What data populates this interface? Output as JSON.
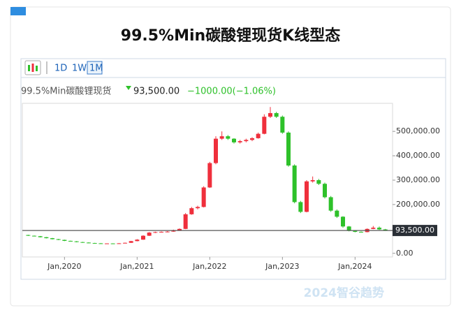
{
  "chart_data": {
    "type": "candlestick",
    "title": "99.5%Min碳酸锂现货K线型态",
    "toolbar": [
      "1D",
      "1W",
      "1M"
    ],
    "active": "1M",
    "series_name": "99.5%Min碳酸锂现货",
    "price_line": {
      "value": 93500,
      "label": "93,500.00"
    },
    "change_text": "−1000.00(−1.06%)",
    "watermark": "2024智谷趋势",
    "up_color": "#ef2f3c",
    "down_color": "#2ec12a",
    "grid": false,
    "x": [
      "2019-07",
      "2019-08",
      "2019-09",
      "2019-10",
      "2019-11",
      "2019-12",
      "2020-01",
      "2020-02",
      "2020-03",
      "2020-04",
      "2020-05",
      "2020-06",
      "2020-07",
      "2020-08",
      "2020-09",
      "2020-10",
      "2020-11",
      "2020-12",
      "2021-01",
      "2021-02",
      "2021-03",
      "2021-04",
      "2021-05",
      "2021-06",
      "2021-07",
      "2021-08",
      "2021-09",
      "2021-10",
      "2021-11",
      "2021-12",
      "2022-01",
      "2022-02",
      "2022-03",
      "2022-04",
      "2022-05",
      "2022-06",
      "2022-07",
      "2022-08",
      "2022-09",
      "2022-10",
      "2022-11",
      "2022-12",
      "2023-01",
      "2023-02",
      "2023-03",
      "2023-04",
      "2023-05",
      "2023-06",
      "2023-07",
      "2023-08",
      "2023-09",
      "2023-10",
      "2023-11",
      "2023-12",
      "2024-01",
      "2024-02",
      "2024-03",
      "2024-04",
      "2024-05",
      "2024-06"
    ],
    "open": [
      75000,
      72000,
      70000,
      66000,
      62000,
      58000,
      55000,
      51000,
      49000,
      46000,
      44000,
      42000,
      41000,
      40000,
      40500,
      40000,
      41000,
      43000,
      50000,
      56000,
      72000,
      85000,
      87000,
      88000,
      89000,
      95000,
      100000,
      160000,
      185000,
      190000,
      270000,
      370000,
      470000,
      480000,
      470000,
      455000,
      460000,
      465000,
      472000,
      490000,
      560000,
      575000,
      560000,
      495000,
      360000,
      210000,
      170000,
      295000,
      300000,
      285000,
      230000,
      175000,
      150000,
      110000,
      92000,
      88000,
      87000,
      100000,
      105000,
      98000
    ],
    "high": [
      76000,
      73000,
      71000,
      67000,
      63000,
      59000,
      56000,
      52000,
      50000,
      47000,
      45000,
      43000,
      42000,
      41000,
      41000,
      42000,
      44000,
      51000,
      58000,
      74000,
      87000,
      89000,
      90000,
      91000,
      97000,
      102000,
      165000,
      190000,
      195000,
      275000,
      375000,
      480000,
      500000,
      485000,
      472000,
      465000,
      470000,
      476000,
      495000,
      570000,
      600000,
      580000,
      565000,
      500000,
      365000,
      215000,
      300000,
      315000,
      305000,
      290000,
      235000,
      180000,
      152000,
      112000,
      93000,
      90000,
      102000,
      112000,
      110000,
      100000
    ],
    "low": [
      71000,
      69000,
      65000,
      61000,
      57000,
      54000,
      50000,
      48000,
      45000,
      43000,
      41000,
      40000,
      39000,
      39000,
      39000,
      39500,
      40500,
      42500,
      49000,
      55000,
      71000,
      83000,
      85000,
      86000,
      88000,
      94000,
      99000,
      158000,
      180000,
      188000,
      268000,
      365000,
      465000,
      465000,
      450000,
      450000,
      455000,
      460000,
      470000,
      488000,
      555000,
      555000,
      490000,
      355000,
      205000,
      165000,
      168000,
      290000,
      280000,
      225000,
      170000,
      145000,
      105000,
      90000,
      86000,
      85000,
      86000,
      99000,
      96000,
      92000
    ],
    "close": [
      72000,
      70000,
      66000,
      62000,
      58000,
      55000,
      51000,
      49000,
      46000,
      44000,
      42000,
      41000,
      40000,
      40500,
      40000,
      41000,
      43000,
      50000,
      56000,
      72000,
      85000,
      87000,
      88000,
      89000,
      95000,
      100000,
      160000,
      185000,
      190000,
      270000,
      370000,
      470000,
      480000,
      470000,
      455000,
      460000,
      465000,
      472000,
      490000,
      560000,
      575000,
      560000,
      495000,
      360000,
      210000,
      170000,
      295000,
      300000,
      285000,
      230000,
      175000,
      150000,
      110000,
      92000,
      88000,
      87000,
      100000,
      105000,
      98000,
      93500
    ],
    "xticks": [
      {
        "value": "2020-01",
        "label": "Jan,2020"
      },
      {
        "value": "2021-01",
        "label": "Jan,2021"
      },
      {
        "value": "2022-01",
        "label": "Jan,2022"
      },
      {
        "value": "2023-01",
        "label": "Jan,2023"
      },
      {
        "value": "2024-01",
        "label": "Jan,2024"
      }
    ],
    "ylim": [
      -15000,
      615000
    ],
    "yticks": [
      {
        "value": 0,
        "label": "0.00"
      },
      {
        "value": 200000,
        "label": "200,000.00"
      },
      {
        "value": 300000,
        "label": "300,000.00"
      },
      {
        "value": 400000,
        "label": "400,000.00"
      },
      {
        "value": 500000,
        "label": "500,000.00"
      }
    ]
  }
}
